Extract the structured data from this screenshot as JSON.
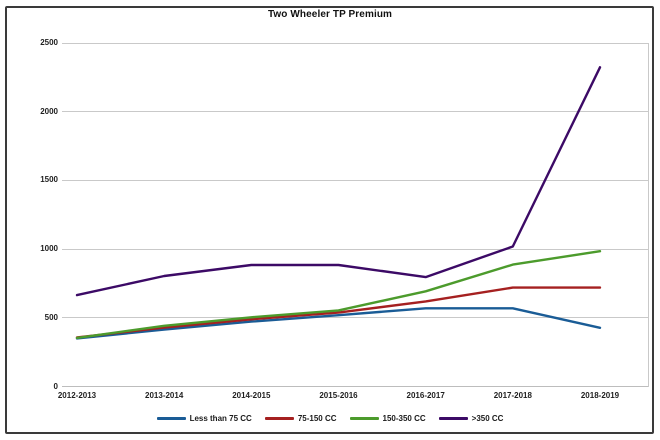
{
  "chart_data": {
    "type": "line",
    "title": "Two Wheeler TP Premium",
    "categories": [
      "2012-2013",
      "2013-2014",
      "2014-2015",
      "2015-2016",
      "2016-2017",
      "2017-2018",
      "2018-2019"
    ],
    "series": [
      {
        "name": "Less than 75 CC",
        "color": "#1A5C96",
        "values": [
          350,
          414,
          472,
          519,
          569,
          569,
          427
        ]
      },
      {
        "name": "75-150 CC",
        "color": "#A52020",
        "values": [
          357,
          429,
          489,
          538,
          619,
          720,
          720
        ]
      },
      {
        "name": "150-350 CC",
        "color": "#4C9B2C",
        "values": [
          354,
          442,
          504,
          554,
          693,
          887,
          985
        ]
      },
      {
        "name": ">350 CC",
        "color": "#3C0A66",
        "values": [
          665,
          804,
          884,
          884,
          796,
          1019,
          2323
        ]
      }
    ],
    "yticks": [
      0,
      500,
      1000,
      1500,
      2000,
      2500
    ],
    "ylim": [
      0,
      2500
    ],
    "xlabel": "",
    "ylabel": "",
    "grid": true,
    "legend_position": "bottom",
    "colors": {
      "gridline": "#c9c9c9",
      "frame_border": "#3a3a3a",
      "text": "#1f1f1f"
    }
  }
}
